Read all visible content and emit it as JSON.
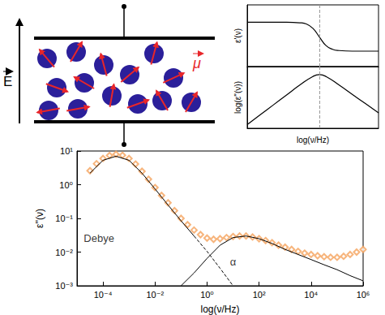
{
  "diagram": {
    "field_label": "E",
    "dipole_label": "μ"
  },
  "chart_data": [
    {
      "type": "line",
      "ylabel": "ε'(ν)",
      "tick_labels": false,
      "color": "#000000",
      "xlim": [
        0,
        10
      ],
      "ylim": [
        0,
        1
      ],
      "x": [
        0,
        1,
        2,
        3,
        4,
        4.5,
        5,
        5.5,
        6,
        6.5,
        7,
        8,
        9,
        10
      ],
      "values": [
        0.72,
        0.72,
        0.72,
        0.72,
        0.71,
        0.69,
        0.62,
        0.48,
        0.34,
        0.28,
        0.26,
        0.25,
        0.25,
        0.25
      ],
      "vline": 5.5
    },
    {
      "type": "line",
      "xlabel": "log(ν/Hz)",
      "ylabel": "log(ε''(ν))",
      "tick_labels": false,
      "color": "#000000",
      "xlim": [
        0,
        10
      ],
      "ylim": [
        0,
        1
      ],
      "x": [
        0,
        1,
        2,
        3,
        4,
        5,
        5.5,
        6,
        7,
        8,
        9,
        10
      ],
      "values": [
        0.06,
        0.22,
        0.38,
        0.54,
        0.7,
        0.84,
        0.87,
        0.84,
        0.7,
        0.55,
        0.4,
        0.25
      ],
      "vline": 5.5
    },
    {
      "type": "line",
      "xlabel": "log(ν/Hz)",
      "ylabel": "ε''(ν)",
      "log": true,
      "xlim": [
        1e-05,
        1000000
      ],
      "ylim": [
        0.001,
        10
      ],
      "xticks": [
        {
          "value": 0.0001,
          "label": "10⁻⁴"
        },
        {
          "value": 0.01,
          "label": "10⁻²"
        },
        {
          "value": 1,
          "label": "10⁰"
        },
        {
          "value": 100,
          "label": "10²"
        },
        {
          "value": 10000,
          "label": "10⁴"
        },
        {
          "value": 1000000,
          "label": "10⁶"
        }
      ],
      "yticks": [
        {
          "value": 0.001,
          "label": "10⁻³"
        },
        {
          "value": 0.01,
          "label": "10⁻²"
        },
        {
          "value": 0.1,
          "label": "10⁻¹"
        },
        {
          "value": 1,
          "label": "10⁰"
        },
        {
          "value": 10,
          "label": "10¹"
        }
      ],
      "series": [
        {
          "type": "scatter",
          "marker": "diamond",
          "color": "#f5a25d",
          "x": [
            3.16e-05,
            5.62e-05,
            0.0001,
            0.000178,
            0.000316,
            0.000562,
            0.001,
            0.00178,
            0.00316,
            0.00562,
            0.01,
            0.0178,
            0.0316,
            0.0562,
            0.1,
            0.178,
            0.316,
            0.562,
            1,
            1.78,
            3.16,
            5.62,
            10,
            17.8,
            31.6,
            56.2,
            100,
            178,
            316,
            562,
            1000,
            1780,
            3160,
            5620,
            10000,
            17800,
            31600,
            56200,
            100000,
            178000,
            316000,
            562000,
            1000000
          ],
          "values": [
            2.6,
            4.2,
            6.0,
            7.4,
            8.0,
            7.5,
            6.0,
            4.1,
            2.5,
            1.45,
            0.82,
            0.48,
            0.29,
            0.17,
            0.1,
            0.065,
            0.045,
            0.033,
            0.026,
            0.024,
            0.025,
            0.027,
            0.029,
            0.03,
            0.03,
            0.028,
            0.025,
            0.022,
            0.019,
            0.016,
            0.014,
            0.012,
            0.0105,
            0.0093,
            0.0085,
            0.0078,
            0.0073,
            0.007,
            0.007,
            0.0075,
            0.0085,
            0.01,
            0.012
          ]
        },
        {
          "type": "line",
          "line_style": "solid",
          "color": "#000000",
          "x": [
            3.16e-05,
            0.0001,
            0.000316,
            0.001,
            0.00316,
            0.01,
            0.0316,
            0.1,
            0.316
          ],
          "values": [
            2.2,
            5.3,
            7.0,
            5.3,
            2.2,
            0.75,
            0.25,
            0.085,
            0.03
          ]
        },
        {
          "type": "line",
          "line_style": "dashed",
          "color": "#000000",
          "x": [
            0.316,
            1,
            3.16,
            10
          ],
          "values": [
            0.03,
            0.0105,
            0.0033,
            0.001
          ]
        },
        {
          "type": "line",
          "line_style": "solid",
          "color": "#000000",
          "x": [
            0.1,
            0.316,
            1,
            3.16,
            10,
            31.6,
            100,
            316,
            1000,
            3160,
            10000,
            31600,
            100000,
            316000,
            1000000
          ],
          "values": [
            0.001,
            0.0024,
            0.0065,
            0.016,
            0.027,
            0.03,
            0.025,
            0.018,
            0.012,
            0.0085,
            0.006,
            0.0042,
            0.003,
            0.002,
            0.0014
          ]
        }
      ],
      "annotations": [
        {
          "text": "Debye",
          "x": 7e-05,
          "y": 0.025
        },
        {
          "text": "α",
          "x": 10,
          "y": 0.005
        }
      ]
    }
  ]
}
